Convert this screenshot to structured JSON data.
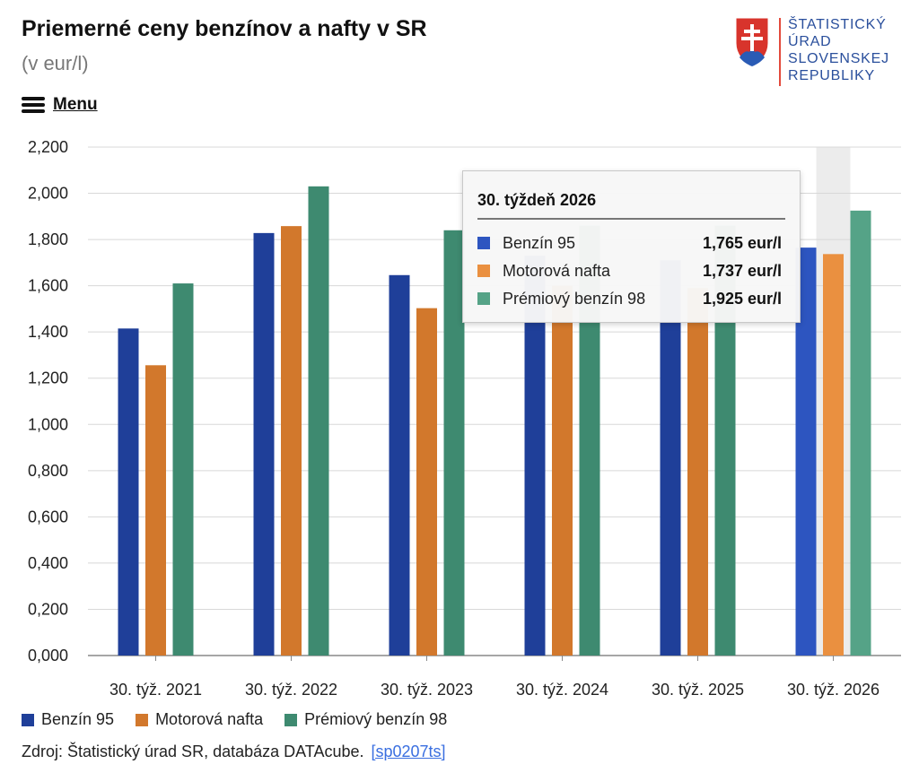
{
  "header": {
    "title": "Priemerné ceny benzínov a nafty v SR",
    "subtitle": "(v eur/l)",
    "menu_label": "Menu"
  },
  "logo": {
    "line1": "ŠTATISTICKÝ",
    "line2": "ÚRAD",
    "line3": "SLOVENSKEJ",
    "line4": "REPUBLIKY"
  },
  "colors": {
    "benzin95": "#1f3f99",
    "nafta": "#d2782c",
    "premium98": "#3e8a70",
    "benzin95_highlight": "#2d55c0",
    "nafta_highlight": "#ea9040",
    "premium98_highlight": "#55a387",
    "grid": "#d8d8d8",
    "hover_band": "#ececec"
  },
  "chart_data": {
    "type": "bar",
    "title": "Priemerné ceny benzínov a nafty v SR",
    "subtitle": "(v eur/l)",
    "categories": [
      "30. týž. 2021",
      "30. týž. 2022",
      "30. týž. 2023",
      "30. týž. 2024",
      "30. týž. 2025",
      "30. týž. 2026"
    ],
    "series": [
      {
        "name": "Benzín 95",
        "values": [
          1.415,
          1.828,
          1.646,
          1.73,
          1.71,
          1.765
        ]
      },
      {
        "name": "Motorová nafta",
        "values": [
          1.256,
          1.858,
          1.503,
          1.6,
          1.59,
          1.737
        ]
      },
      {
        "name": "Prémiový benzín 98",
        "values": [
          1.61,
          2.03,
          1.84,
          1.86,
          1.86,
          1.925
        ]
      }
    ],
    "ylim": [
      0,
      2.2
    ],
    "yticks": [
      "0,000",
      "0,200",
      "0,400",
      "0,600",
      "0,800",
      "1,000",
      "1,200",
      "1,400",
      "1,600",
      "1,800",
      "2,000",
      "2,200"
    ],
    "grid": true,
    "legend_position": "bottom-left",
    "highlighted_category": "30. týž. 2026"
  },
  "tooltip": {
    "title": "30. týždeň 2026",
    "rows": [
      {
        "name": "Benzín 95",
        "value": "1,765 eur/l"
      },
      {
        "name": "Motorová nafta",
        "value": "1,737 eur/l"
      },
      {
        "name": "Prémiový benzín 98",
        "value": "1,925 eur/l"
      }
    ]
  },
  "legend": {
    "items": [
      "Benzín 95",
      "Motorová nafta",
      "Prémiový benzín 98"
    ]
  },
  "source": {
    "text": "Zdroj: Štatistický úrad SR, databáza DATAcube.",
    "link": "[sp0207ts]"
  }
}
